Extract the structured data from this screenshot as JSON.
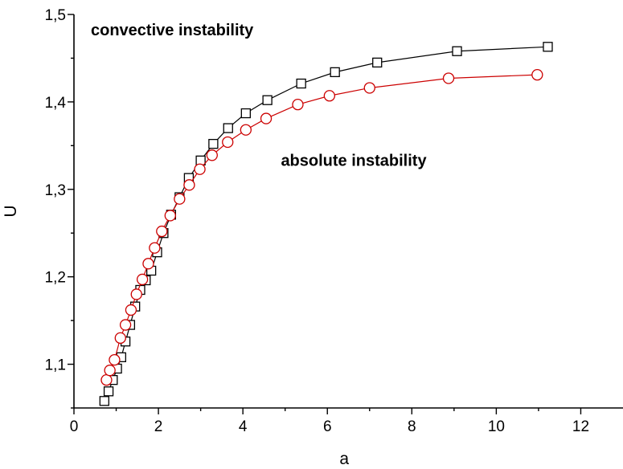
{
  "chart_data": {
    "type": "line",
    "xlabel": "a",
    "ylabel": "U",
    "xlim": [
      0,
      13
    ],
    "ylim": [
      1.05,
      1.5
    ],
    "x_ticks": [
      0,
      2,
      4,
      6,
      8,
      10,
      12
    ],
    "x_tick_labels": [
      "0",
      "2",
      "4",
      "6",
      "8",
      "10",
      "12"
    ],
    "y_ticks": [
      1.1,
      1.2,
      1.3,
      1.4,
      1.5
    ],
    "y_tick_labels": [
      "1,1",
      "1,2",
      "1,3",
      "1,4",
      "1,5"
    ],
    "grid": false,
    "annotations": [
      {
        "text": "convective instability",
        "x": 0.4,
        "y": 1.476
      },
      {
        "text": "absolute  instability",
        "x": 4.9,
        "y": 1.327
      }
    ],
    "series": [
      {
        "marker": "square",
        "color": "#000000",
        "x": [
          0.72,
          0.82,
          0.92,
          1.02,
          1.12,
          1.22,
          1.33,
          1.45,
          1.57,
          1.7,
          1.83,
          1.97,
          2.12,
          2.3,
          2.5,
          2.72,
          3.0,
          3.3,
          3.65,
          4.07,
          4.58,
          5.38,
          6.18,
          7.18,
          9.07,
          11.22
        ],
        "y": [
          1.058,
          1.069,
          1.082,
          1.095,
          1.108,
          1.126,
          1.145,
          1.166,
          1.185,
          1.196,
          1.207,
          1.228,
          1.25,
          1.271,
          1.291,
          1.313,
          1.333,
          1.352,
          1.37,
          1.387,
          1.402,
          1.421,
          1.434,
          1.445,
          1.458,
          1.463
        ]
      },
      {
        "marker": "circle",
        "color": "#cc0000",
        "x": [
          0.77,
          0.85,
          0.96,
          1.1,
          1.22,
          1.35,
          1.48,
          1.62,
          1.76,
          1.91,
          2.08,
          2.28,
          2.5,
          2.73,
          2.98,
          3.27,
          3.64,
          4.07,
          4.55,
          5.3,
          6.05,
          7.0,
          8.87,
          10.97
        ],
        "y": [
          1.082,
          1.093,
          1.105,
          1.13,
          1.145,
          1.162,
          1.18,
          1.197,
          1.215,
          1.233,
          1.252,
          1.27,
          1.289,
          1.305,
          1.323,
          1.339,
          1.354,
          1.368,
          1.381,
          1.397,
          1.407,
          1.416,
          1.427,
          1.431
        ]
      }
    ]
  }
}
